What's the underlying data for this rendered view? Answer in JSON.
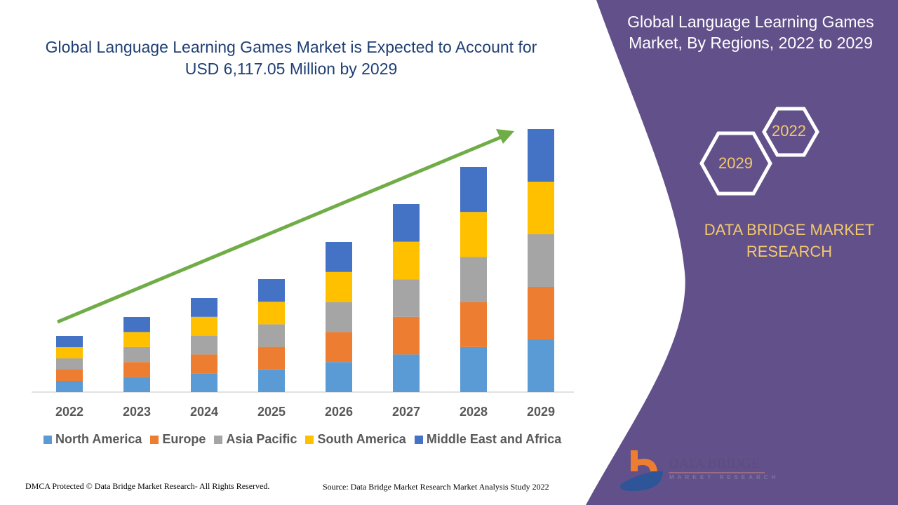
{
  "header": {
    "title": "Global Language Learning Games Market is Expected to Account for USD 6,117.05 Million by 2029",
    "right_title": "Global Language Learning Games Market, By Regions, 2022 to 2029",
    "hex_labels": [
      "2022",
      "2029"
    ],
    "brand": "DATA BRIDGE MARKET RESEARCH"
  },
  "footer": {
    "copyright": "DMCA Protected © Data Bridge Market Research- All Rights Reserved.",
    "source": "Source: Data Bridge Market Research Market Analysis Study 2022"
  },
  "logo": {
    "name": "DATA BRIDGE",
    "sub": "MARKET RESEARCH"
  },
  "colors": {
    "panel": "#62508a",
    "arrow": "#70ad47",
    "title": "#1f3f73",
    "hex_text": "#f3c96a"
  },
  "chart_data": {
    "type": "bar",
    "stacked": true,
    "title": "Global Language Learning Games Market is Expected to Account for USD 6,117.05 Million by 2029",
    "xlabel": "",
    "ylabel": "",
    "y_axis_shown": false,
    "grid": false,
    "legend_placement": "bottom",
    "trend_arrow": true,
    "ylim": [
      0,
      375
    ],
    "categories": [
      "2022",
      "2023",
      "2024",
      "2025",
      "2026",
      "2027",
      "2028",
      "2029"
    ],
    "series": [
      {
        "name": "North America",
        "color": "#5b9bd5",
        "values": [
          16,
          21.4,
          26.8,
          32.2,
          42.8,
          53.6,
          64.2,
          75
        ]
      },
      {
        "name": "Europe",
        "color": "#ed7d31",
        "values": [
          16,
          21.4,
          26.8,
          32.2,
          42.8,
          53.6,
          64.2,
          75
        ]
      },
      {
        "name": "Asia Pacific",
        "color": "#a5a5a5",
        "values": [
          16,
          21.4,
          26.8,
          32.2,
          42.8,
          53.6,
          64.2,
          75
        ]
      },
      {
        "name": "South America",
        "color": "#ffc000",
        "values": [
          16,
          21.4,
          26.8,
          32.2,
          42.8,
          53.6,
          64.2,
          75
        ]
      },
      {
        "name": "Middle East and Africa",
        "color": "#4472c4",
        "values": [
          16,
          21.4,
          26.8,
          32.2,
          42.8,
          53.6,
          64.2,
          75
        ]
      }
    ]
  }
}
